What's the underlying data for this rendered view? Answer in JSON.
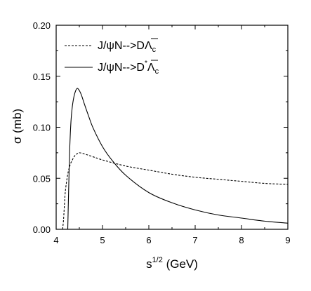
{
  "chart_data": {
    "type": "line",
    "xlabel_base": "s",
    "xlabel_sup": "1/2",
    "xlabel_rest": " (GeV)",
    "ylabel": "σ (mb)",
    "xlim": [
      4,
      9
    ],
    "ylim": [
      0,
      0.2
    ],
    "xticks": [
      4,
      5,
      6,
      7,
      8,
      9
    ],
    "yticks": [
      "0.00",
      "0.05",
      "0.10",
      "0.15",
      "0.20"
    ],
    "legend_position": "top-left",
    "grid": false,
    "series": [
      {
        "name_parts": {
          "prefix": "J/ψN-->",
          "particle": "D",
          "sup": "",
          "suffix": "Λ",
          "sub": "c",
          "bar": true
        },
        "style": "dashed",
        "x": [
          4.14,
          4.16,
          4.18,
          4.2,
          4.25,
          4.3,
          4.35,
          4.4,
          4.45,
          4.5,
          4.6,
          4.8,
          5.0,
          5.5,
          6.0,
          6.5,
          7.0,
          7.5,
          8.0,
          8.5,
          9.0
        ],
        "y": [
          0.0,
          0.01,
          0.025,
          0.038,
          0.054,
          0.063,
          0.068,
          0.072,
          0.074,
          0.075,
          0.074,
          0.071,
          0.068,
          0.062,
          0.058,
          0.054,
          0.051,
          0.049,
          0.047,
          0.045,
          0.044
        ]
      },
      {
        "name_parts": {
          "prefix": "J/ψN-->",
          "particle": "D",
          "sup": "*",
          "suffix": "Λ",
          "sub": "c",
          "bar": true
        },
        "style": "solid",
        "x": [
          4.25,
          4.27,
          4.29,
          4.31,
          4.33,
          4.36,
          4.4,
          4.45,
          4.5,
          4.55,
          4.6,
          4.7,
          4.8,
          5.0,
          5.2,
          5.5,
          6.0,
          6.5,
          7.0,
          7.5,
          8.0,
          8.5,
          9.0
        ],
        "y": [
          0.0,
          0.04,
          0.075,
          0.098,
          0.112,
          0.124,
          0.133,
          0.138,
          0.136,
          0.131,
          0.124,
          0.111,
          0.099,
          0.081,
          0.068,
          0.053,
          0.036,
          0.026,
          0.019,
          0.014,
          0.011,
          0.008,
          0.006
        ]
      }
    ]
  }
}
